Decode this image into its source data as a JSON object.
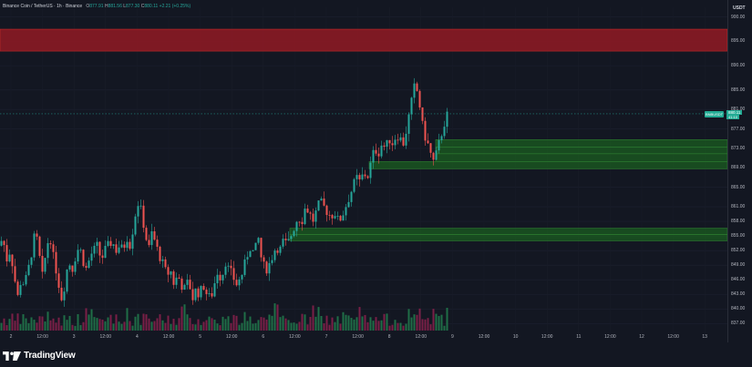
{
  "header": {
    "symbol": "Binance Coin / TetherUS · 1h · Binance",
    "open_label": "O",
    "open": "877.91",
    "high_label": "H",
    "high": "881.56",
    "low_label": "L",
    "low": "877.30",
    "close_label": "C",
    "close": "880.11",
    "change": "+2.21 (+0.25%)"
  },
  "price_axis": {
    "currency": "USDT",
    "ticks": [
      "900.00",
      "895.00",
      "890.00",
      "885.00",
      "881.00",
      "877.00",
      "873.00",
      "869.00",
      "865.00",
      "861.00",
      "858.00",
      "855.00",
      "852.00",
      "849.00",
      "846.00",
      "843.00",
      "840.00",
      "837.00"
    ]
  },
  "current_price": {
    "ticker": "BNBUSDT",
    "price": "880.11",
    "countdown": "41:10"
  },
  "time_axis": {
    "ticks": [
      "2",
      "12:00",
      "3",
      "12:00",
      "4",
      "12:00",
      "5",
      "12:00",
      "6",
      "12:00",
      "7",
      "12:00",
      "8",
      "12:00",
      "9",
      "12:00",
      "10",
      "12:00",
      "11",
      "12:00",
      "12",
      "12:00",
      "13"
    ]
  },
  "chart_data": {
    "type": "candlestick",
    "symbol": "BNBUSDT",
    "interval": "1h",
    "y_unit": "USDT",
    "ylim": [
      835,
      902
    ],
    "current_price": 880.11,
    "colors": {
      "up": "#26a69a",
      "down": "#ef5350",
      "resistance_zone": "#8b1a24",
      "support_zone": "#1b5e20",
      "volume_up": "#1f6e47",
      "volume_down": "#7a1f47"
    },
    "zones": [
      {
        "kind": "resistance",
        "from": 893.0,
        "to": 897.5
      },
      {
        "kind": "support",
        "from": 873.3,
        "to": 874.8
      },
      {
        "kind": "support",
        "from": 871.9,
        "to": 873.3
      },
      {
        "kind": "support",
        "from": 870.3,
        "to": 871.9
      },
      {
        "kind": "support",
        "from": 868.8,
        "to": 870.3
      },
      {
        "kind": "support",
        "from": 855.3,
        "to": 856.6
      },
      {
        "kind": "support",
        "from": 854.0,
        "to": 855.3
      }
    ],
    "price_path": [
      [
        0,
        853
      ],
      [
        3,
        855
      ],
      [
        7,
        850
      ],
      [
        11,
        852
      ],
      [
        15,
        848
      ],
      [
        19,
        842
      ],
      [
        23,
        846
      ],
      [
        27,
        845
      ],
      [
        31,
        848
      ],
      [
        35,
        852
      ],
      [
        39,
        856
      ],
      [
        43,
        851
      ],
      [
        47,
        846
      ],
      [
        51,
        853
      ],
      [
        55,
        855
      ],
      [
        59,
        850
      ],
      [
        63,
        847
      ],
      [
        67,
        842
      ],
      [
        71,
        845
      ],
      [
        75,
        850
      ],
      [
        79,
        848
      ],
      [
        83,
        851
      ],
      [
        87,
        853
      ],
      [
        91,
        850
      ],
      [
        95,
        848
      ],
      [
        99,
        851
      ],
      [
        103,
        852
      ],
      [
        107,
        853
      ],
      [
        111,
        850
      ],
      [
        115,
        852
      ],
      [
        119,
        853
      ],
      [
        123,
        854
      ],
      [
        127,
        852
      ],
      [
        131,
        853
      ],
      [
        135,
        852
      ],
      [
        139,
        855
      ],
      [
        143,
        853
      ],
      [
        147,
        858
      ],
      [
        151,
        862
      ],
      [
        155,
        860
      ],
      [
        159,
        856
      ],
      [
        163,
        852
      ],
      [
        167,
        856
      ],
      [
        171,
        853
      ],
      [
        175,
        851
      ],
      [
        179,
        849
      ],
      [
        183,
        847
      ],
      [
        187,
        848
      ],
      [
        191,
        845
      ],
      [
        195,
        847
      ],
      [
        199,
        845
      ],
      [
        203,
        844
      ],
      [
        207,
        846
      ],
      [
        211,
        842
      ],
      [
        215,
        844
      ],
      [
        219,
        843
      ],
      [
        223,
        845
      ],
      [
        227,
        843
      ],
      [
        231,
        842
      ],
      [
        235,
        845
      ],
      [
        239,
        848
      ],
      [
        243,
        846
      ],
      [
        247,
        850
      ],
      [
        251,
        848
      ],
      [
        255,
        847
      ],
      [
        259,
        845
      ],
      [
        263,
        846
      ],
      [
        267,
        848
      ],
      [
        271,
        851
      ],
      [
        275,
        853
      ],
      [
        279,
        851
      ],
      [
        283,
        855
      ],
      [
        287,
        850
      ],
      [
        291,
        848
      ],
      [
        295,
        849
      ],
      [
        299,
        851
      ],
      [
        303,
        853
      ],
      [
        307,
        852
      ],
      [
        311,
        854
      ],
      [
        315,
        853
      ],
      [
        319,
        855
      ],
      [
        323,
        857
      ],
      [
        327,
        859
      ],
      [
        331,
        858
      ],
      [
        335,
        861
      ],
      [
        339,
        860
      ],
      [
        343,
        858
      ],
      [
        347,
        860
      ],
      [
        351,
        862
      ],
      [
        355,
        861
      ],
      [
        359,
        860
      ],
      [
        363,
        859
      ],
      [
        367,
        860
      ],
      [
        371,
        858
      ],
      [
        375,
        859
      ],
      [
        379,
        861
      ],
      [
        383,
        863
      ],
      [
        387,
        865
      ],
      [
        391,
        867
      ],
      [
        395,
        866
      ],
      [
        399,
        868
      ],
      [
        403,
        867
      ],
      [
        407,
        870
      ],
      [
        411,
        873
      ],
      [
        415,
        872
      ],
      [
        419,
        874
      ],
      [
        423,
        873
      ],
      [
        427,
        875
      ],
      [
        431,
        874
      ],
      [
        435,
        876
      ],
      [
        439,
        875
      ],
      [
        443,
        874
      ],
      [
        447,
        878
      ],
      [
        451,
        882
      ],
      [
        455,
        886
      ],
      [
        459,
        884
      ],
      [
        463,
        878
      ],
      [
        467,
        875
      ],
      [
        471,
        873
      ],
      [
        475,
        870
      ],
      [
        479,
        872
      ],
      [
        483,
        875
      ],
      [
        487,
        878
      ],
      [
        491,
        880
      ]
    ]
  }
}
